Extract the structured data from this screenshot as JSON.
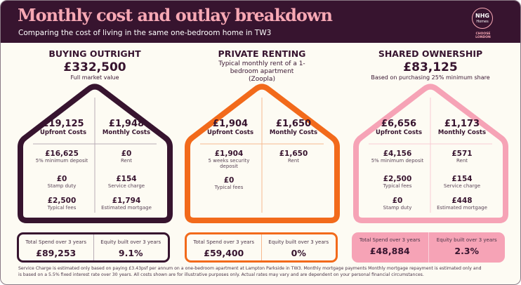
{
  "header": {
    "title": "Monthly cost and outlay breakdown",
    "subtitle": "Comparing the cost of living in the same one-bedroom home in TW3",
    "logo_text": "NHG Homes",
    "logo_tagline": "CHOOSE LONDON"
  },
  "colors": {
    "header_bg": "#37142f",
    "title": "#f7a8b4",
    "buying": "#37142f",
    "renting": "#f26a1b",
    "shared": "#f6a3b6"
  },
  "sections": [
    {
      "title": "BUYING OUTRIGHT",
      "value": "£332,500",
      "caption": "Full market value",
      "upfront": {
        "value": "£19,125",
        "label": "Upfront Costs"
      },
      "monthly": {
        "value": "£1,948",
        "label": "Monthly Costs"
      },
      "left_items": [
        {
          "value": "£16,625",
          "label": "5% minimum deposit"
        },
        {
          "value": "£0",
          "label": "Stamp duty"
        },
        {
          "value": "£2,500",
          "label": "Typical fees"
        }
      ],
      "right_items": [
        {
          "value": "£0",
          "label": "Rent"
        },
        {
          "value": "£154",
          "label": "Service charge"
        },
        {
          "value": "£1,794",
          "label": "Estimated mortgage"
        }
      ],
      "total_label": "Total Spend over 3 years",
      "total": "£89,253",
      "equity_label": "Equity built over 3 years",
      "equity": "9.1%"
    },
    {
      "title": "PRIVATE RENTING",
      "value": "",
      "caption": "Typical monthly rent of a 1-bedroom apartment (Zoopla)",
      "upfront": {
        "value": "£1,904",
        "label": "Upfront Costs"
      },
      "monthly": {
        "value": "£1,650",
        "label": "Monthly Costs"
      },
      "left_items": [
        {
          "value": "£1,904",
          "label": "5 weeks security deposit"
        },
        {
          "value": "£0",
          "label": "Typical fees"
        }
      ],
      "right_items": [
        {
          "value": "£1,650",
          "label": "Rent"
        }
      ],
      "total_label": "Total Spend over 3 years",
      "total": "£59,400",
      "equity_label": "Equity built over 3 years",
      "equity": "0%"
    },
    {
      "title": "SHARED OWNERSHIP",
      "value": "£83,125",
      "caption": "Based on purchasing 25% minimum share",
      "upfront": {
        "value": "£6,656",
        "label": "Upfront Costs"
      },
      "monthly": {
        "value": "£1,173",
        "label": "Monthly Costs"
      },
      "left_items": [
        {
          "value": "£4,156",
          "label": "5% minimum deposit"
        },
        {
          "value": "£2,500",
          "label": "Typical fees"
        },
        {
          "value": "£0",
          "label": "Stamp duty"
        }
      ],
      "right_items": [
        {
          "value": "£571",
          "label": "Rent"
        },
        {
          "value": "£154",
          "label": "Service charge"
        },
        {
          "value": "£448",
          "label": "Estimated mortgage"
        }
      ],
      "total_label": "Total Spend over 3 years",
      "total": "£48,884",
      "equity_label": "Equity built over 3 years",
      "equity": "2.3%"
    }
  ],
  "footnote": "Service Charge is estimated only based on paying £3.43psf per annum on a one-bedroom apartment at Lampton Parkside in TW3. Monthly mortgage payments Monthly mortgage repayment is estimated only and is based on a 5.5% fixed interest rate over 30 years. All costs shown are for illustrative purposes only. Actual rates may vary and are dependent on your personal financial circumstances."
}
